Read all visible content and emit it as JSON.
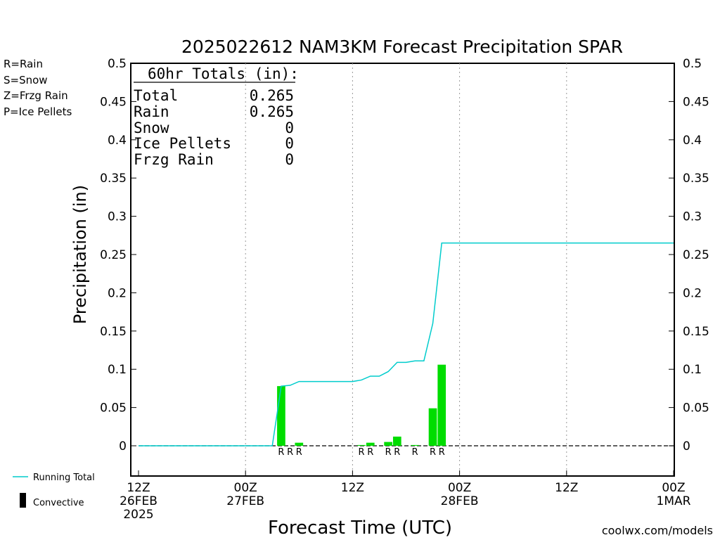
{
  "chart_data": {
    "type": "bar",
    "title": "2025022612 NAM3KM Forecast Precipitation SPAR",
    "xlabel": "Forecast Time (UTC)",
    "ylabel": "Precipitation (in)",
    "ylim": [
      -0.04,
      0.5
    ],
    "xlim_hours": [
      0,
      60
    ],
    "y_ticks": [
      "0",
      "0.05",
      "0.1",
      "0.15",
      "0.2",
      "0.25",
      "0.3",
      "0.35",
      "0.4",
      "0.45",
      "0.5"
    ],
    "y_tick_values": [
      0,
      0.05,
      0.1,
      0.15,
      0.2,
      0.25,
      0.3,
      0.35,
      0.4,
      0.45,
      0.5
    ],
    "x_ticks": [
      {
        "hour": 0,
        "line1": "12Z",
        "line2": "26FEB",
        "line3": "2025"
      },
      {
        "hour": 12,
        "line1": "00Z",
        "line2": "27FEB",
        "line3": ""
      },
      {
        "hour": 24,
        "line1": "12Z",
        "line2": "",
        "line3": ""
      },
      {
        "hour": 36,
        "line1": "00Z",
        "line2": "28FEB",
        "line3": ""
      },
      {
        "hour": 48,
        "line1": "12Z",
        "line2": "",
        "line3": ""
      },
      {
        "hour": 60,
        "line1": "00Z",
        "line2": "1MAR",
        "line3": ""
      }
    ],
    "grid": "vertical-dotted",
    "series": [
      {
        "name": "Rain",
        "type": "bar",
        "color": "#00dd00",
        "points": [
          {
            "hour": 16,
            "value": 0.078,
            "label": "R"
          },
          {
            "hour": 17,
            "value": 0.0,
            "label": "R"
          },
          {
            "hour": 18,
            "value": 0.004,
            "label": "R"
          },
          {
            "hour": 25,
            "value": 0.001,
            "label": "R"
          },
          {
            "hour": 26,
            "value": 0.004,
            "label": "R"
          },
          {
            "hour": 28,
            "value": 0.005,
            "label": "R"
          },
          {
            "hour": 29,
            "value": 0.012,
            "label": "R"
          },
          {
            "hour": 31,
            "value": 0.001,
            "label": "R"
          },
          {
            "hour": 33,
            "value": 0.049,
            "label": "R"
          },
          {
            "hour": 34,
            "value": 0.106,
            "label": "R"
          }
        ]
      },
      {
        "name": "Running Total",
        "type": "line",
        "color": "#00cccc",
        "x": [
          0,
          1,
          2,
          3,
          4,
          5,
          6,
          7,
          8,
          9,
          10,
          11,
          12,
          13,
          14,
          15,
          16,
          17,
          18,
          19,
          20,
          21,
          22,
          23,
          24,
          25,
          26,
          27,
          28,
          29,
          30,
          31,
          32,
          33,
          34,
          35,
          36,
          40,
          44,
          48,
          52,
          56,
          60
        ],
        "y": [
          0,
          0,
          0,
          0,
          0,
          0,
          0,
          0,
          0,
          0,
          0,
          0,
          0,
          0,
          0,
          0,
          0.078,
          0.079,
          0.084,
          0.084,
          0.084,
          0.084,
          0.084,
          0.084,
          0.084,
          0.086,
          0.091,
          0.091,
          0.097,
          0.109,
          0.109,
          0.111,
          0.111,
          0.16,
          0.265,
          0.265,
          0.265,
          0.265,
          0.265,
          0.265,
          0.265,
          0.265,
          0.265
        ]
      }
    ],
    "totals": {
      "heading": "60hr Totals (in):",
      "rows": [
        {
          "label": "Total",
          "value": "0.265"
        },
        {
          "label": "Rain",
          "value": "0.265"
        },
        {
          "label": "Snow",
          "value": "0"
        },
        {
          "label": "Ice Pellets",
          "value": "0"
        },
        {
          "label": "Frzg Rain",
          "value": "0"
        }
      ]
    }
  },
  "ptype_legend": [
    {
      "text": "R=Rain",
      "color": "#00cc00"
    },
    {
      "text": "S=Snow",
      "color": "#3333ff"
    },
    {
      "text": "Z=Frzg Rain",
      "color": "#ff8800"
    },
    {
      "text": "P=Ice Pellets",
      "color": "#dd0099"
    }
  ],
  "bottom_legend": {
    "running_total": "Running Total",
    "convective": "Convective"
  },
  "credit": "coolwx.com/models",
  "colors": {
    "rain_bar": "#00dd00",
    "running_total": "#00cccc",
    "credit": "#cc0000"
  }
}
